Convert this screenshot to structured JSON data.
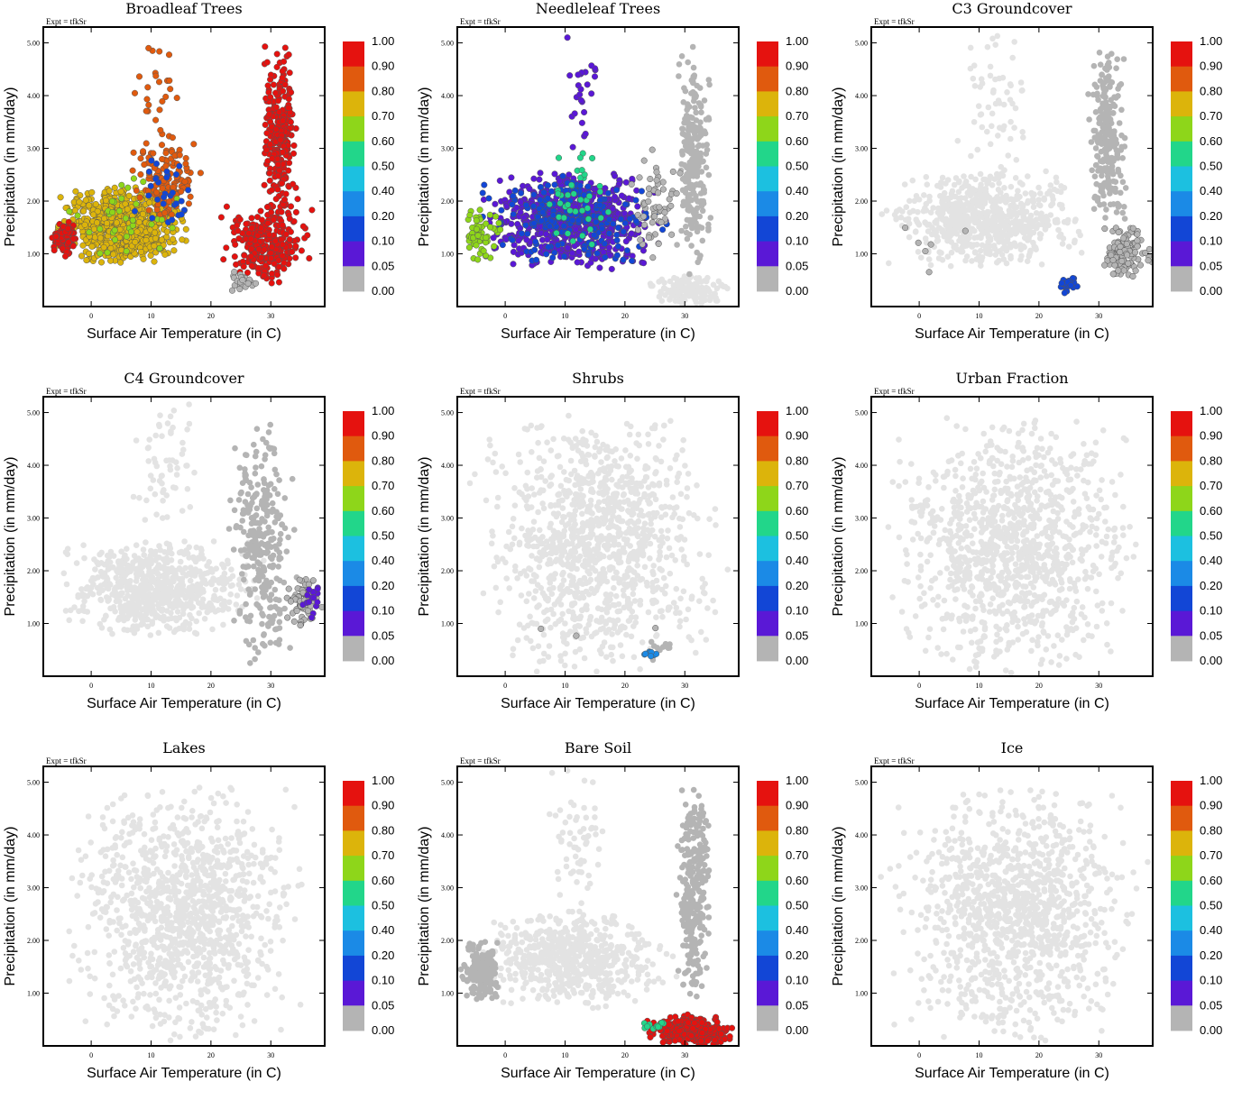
{
  "expt_label": "Expt = tfkSr",
  "colors": {
    "background_points": "#e3e3e3",
    "zero_points": "#b4b4b4",
    "frame": "#000000"
  },
  "colorbar": {
    "labels": [
      "1.00",
      "0.90",
      "0.80",
      "0.70",
      "0.60",
      "0.50",
      "0.40",
      "0.20",
      "0.10",
      "0.05",
      "0.00"
    ],
    "colors": [
      "#e5120f",
      "#e05a0e",
      "#dcb40b",
      "#8ed61a",
      "#22d68a",
      "#1cc0e0",
      "#1b8ae6",
      "#1246d6",
      "#5a18d6",
      "#b4b4b4"
    ]
  },
  "chart_data": [
    {
      "type": "scatter",
      "title": "Broadleaf Trees",
      "xlabel": "Surface Air Temperature (in C)",
      "ylabel": "Precipitation (in mm/day)",
      "xlim": [
        -8,
        39
      ],
      "ylim": [
        0,
        5.3
      ],
      "xticks": [
        "0",
        "10",
        "20",
        "30"
      ],
      "yticks": [
        "1.00",
        "2.00",
        "3.00",
        "4.00",
        "5.00"
      ],
      "clusters": [
        {
          "x": [
            -8,
            18
          ],
          "y": [
            0.8,
            2.3
          ],
          "n": 700,
          "level": 8
        },
        {
          "x": [
            -7,
            -2
          ],
          "y": [
            0.9,
            1.7
          ],
          "n": 100,
          "level": 10
        },
        {
          "x": [
            5,
            20
          ],
          "y": [
            1.6,
            3.3
          ],
          "n": 120,
          "level": 9
        },
        {
          "x": [
            20,
            39
          ],
          "y": [
            0.4,
            2.0
          ],
          "n": 250,
          "level": 10
        },
        {
          "x": [
            28,
            35
          ],
          "y": [
            1.5,
            5.0
          ],
          "n": 260,
          "level": 10
        },
        {
          "x": [
            -6,
            18
          ],
          "y": [
            0.8,
            2.5
          ],
          "n": 35,
          "level": 7
        },
        {
          "x": [
            6,
            20
          ],
          "y": [
            1.2,
            3.0
          ],
          "n": 30,
          "level": 3
        },
        {
          "x": [
            22,
            29
          ],
          "y": [
            0.2,
            0.7
          ],
          "n": 25,
          "level": 1
        },
        {
          "x": [
            6,
            16
          ],
          "y": [
            3.0,
            5.3
          ],
          "n": 25,
          "level": 9
        }
      ]
    },
    {
      "type": "scatter",
      "title": "Needleleaf Trees",
      "xlabel": "Surface Air Temperature (in C)",
      "ylabel": "Precipitation (in mm/day)",
      "xlim": [
        -8,
        39
      ],
      "ylim": [
        0,
        5.3
      ],
      "xticks": [
        "0",
        "10",
        "20",
        "30"
      ],
      "yticks": [
        "1.00",
        "2.00",
        "3.00",
        "4.00",
        "5.00"
      ],
      "clusters": [
        {
          "x": [
            -8,
            30
          ],
          "y": [
            0.7,
            2.6
          ],
          "n": 600,
          "level": 2
        },
        {
          "x": [
            -8,
            30
          ],
          "y": [
            0.7,
            2.6
          ],
          "n": 200,
          "level": 3
        },
        {
          "x": [
            -8,
            0
          ],
          "y": [
            0.8,
            2.0
          ],
          "n": 60,
          "level": 7
        },
        {
          "x": [
            5,
            20
          ],
          "y": [
            1.0,
            3.0
          ],
          "n": 40,
          "level": 6
        },
        {
          "x": [
            8,
            17
          ],
          "y": [
            2.8,
            5.3
          ],
          "n": 25,
          "level": 2
        },
        {
          "x": [
            20,
            30
          ],
          "y": [
            0.8,
            3.0
          ],
          "n": 60,
          "level": 1
        },
        {
          "x": [
            28,
            35
          ],
          "y": [
            0.5,
            5.0
          ],
          "n": 260,
          "level": 0
        },
        {
          "x": [
            22,
            39
          ],
          "y": [
            0.0,
            0.6
          ],
          "n": 150,
          "level": -1
        }
      ]
    },
    {
      "type": "scatter",
      "title": "C3 Groundcover",
      "xlabel": "Surface Air Temperature (in C)",
      "ylabel": "Precipitation (in mm/day)",
      "xlim": [
        -8,
        39
      ],
      "ylim": [
        0,
        5.3
      ],
      "xticks": [
        "0",
        "10",
        "20",
        "30"
      ],
      "yticks": [
        "1.00",
        "2.00",
        "3.00",
        "4.00",
        "5.00"
      ],
      "clusters": [
        {
          "x": [
            -8,
            30
          ],
          "y": [
            0.7,
            2.6
          ],
          "n": 700,
          "level": -1
        },
        {
          "x": [
            5,
            20
          ],
          "y": [
            2.5,
            5.3
          ],
          "n": 60,
          "level": -1
        },
        {
          "x": [
            28,
            35
          ],
          "y": [
            1.5,
            5.0
          ],
          "n": 260,
          "level": 0
        },
        {
          "x": [
            30,
            39
          ],
          "y": [
            0.5,
            1.6
          ],
          "n": 120,
          "level": 1
        },
        {
          "x": [
            22,
            28
          ],
          "y": [
            0.2,
            0.6
          ],
          "n": 30,
          "level": 3
        },
        {
          "x": [
            -7,
            10
          ],
          "y": [
            0.5,
            2.1
          ],
          "n": 6,
          "level": 1
        }
      ]
    },
    {
      "type": "scatter",
      "title": "C4 Groundcover",
      "xlabel": "Surface Air Temperature (in C)",
      "ylabel": "Precipitation (in mm/day)",
      "xlim": [
        -8,
        39
      ],
      "ylim": [
        0,
        5.3
      ],
      "xticks": [
        "0",
        "10",
        "20",
        "30"
      ],
      "yticks": [
        "1.00",
        "2.00",
        "3.00",
        "4.00",
        "5.00"
      ],
      "clusters": [
        {
          "x": [
            -8,
            30
          ],
          "y": [
            0.7,
            2.6
          ],
          "n": 700,
          "level": -1
        },
        {
          "x": [
            5,
            20
          ],
          "y": [
            2.5,
            5.3
          ],
          "n": 60,
          "level": -1
        },
        {
          "x": [
            22,
            35
          ],
          "y": [
            0.1,
            5.0
          ],
          "n": 300,
          "level": 0
        },
        {
          "x": [
            32,
            39
          ],
          "y": [
            0.8,
            2.0
          ],
          "n": 70,
          "level": 1
        },
        {
          "x": [
            33,
            39
          ],
          "y": [
            1.0,
            1.8
          ],
          "n": 15,
          "level": 2
        }
      ]
    },
    {
      "type": "scatter",
      "title": "Shrubs",
      "xlabel": "Surface Air Temperature (in C)",
      "ylabel": "Precipitation (in mm/day)",
      "xlim": [
        -8,
        39
      ],
      "ylim": [
        0,
        5.3
      ],
      "xticks": [
        "0",
        "10",
        "20",
        "30"
      ],
      "yticks": [
        "1.00",
        "2.00",
        "3.00",
        "4.00",
        "5.00"
      ],
      "clusters": [
        {
          "x": [
            -8,
            39
          ],
          "y": [
            0.0,
            5.0
          ],
          "n": 1100,
          "level": -1
        },
        {
          "x": [
            22,
            30
          ],
          "y": [
            0.3,
            0.8
          ],
          "n": 12,
          "level": 0
        },
        {
          "x": [
            22,
            26
          ],
          "y": [
            0.35,
            0.5
          ],
          "n": 8,
          "level": 4
        },
        {
          "x": [
            -5,
            35
          ],
          "y": [
            0.7,
            0.95
          ],
          "n": 3,
          "level": 1
        }
      ]
    },
    {
      "type": "scatter",
      "title": "Urban Fraction",
      "xlabel": "Surface Air Temperature (in C)",
      "ylabel": "Precipitation (in mm/day)",
      "xlim": [
        -8,
        39
      ],
      "ylim": [
        0,
        5.3
      ],
      "xticks": [
        "0",
        "10",
        "20",
        "30"
      ],
      "yticks": [
        "1.00",
        "2.00",
        "3.00",
        "4.00",
        "5.00"
      ],
      "clusters": [
        {
          "x": [
            -8,
            39
          ],
          "y": [
            0.0,
            5.0
          ],
          "n": 1100,
          "level": -1
        }
      ]
    },
    {
      "type": "scatter",
      "title": "Lakes",
      "xlabel": "Surface Air Temperature (in C)",
      "ylabel": "Precipitation (in mm/day)",
      "xlim": [
        -8,
        39
      ],
      "ylim": [
        0,
        5.3
      ],
      "xticks": [
        "0",
        "10",
        "20",
        "30"
      ],
      "yticks": [
        "1.00",
        "2.00",
        "3.00",
        "4.00",
        "5.00"
      ],
      "clusters": [
        {
          "x": [
            -8,
            39
          ],
          "y": [
            0.0,
            5.0
          ],
          "n": 1100,
          "level": -1
        }
      ]
    },
    {
      "type": "scatter",
      "title": "Bare Soil",
      "xlabel": "Surface Air Temperature (in C)",
      "ylabel": "Precipitation (in mm/day)",
      "xlim": [
        -8,
        39
      ],
      "ylim": [
        0,
        5.3
      ],
      "xticks": [
        "0",
        "10",
        "20",
        "30"
      ],
      "yticks": [
        "1.00",
        "2.00",
        "3.00",
        "4.00",
        "5.00"
      ],
      "clusters": [
        {
          "x": [
            -8,
            30
          ],
          "y": [
            0.7,
            2.6
          ],
          "n": 600,
          "level": -1
        },
        {
          "x": [
            5,
            20
          ],
          "y": [
            2.5,
            5.3
          ],
          "n": 60,
          "level": -1
        },
        {
          "x": [
            -8,
            0
          ],
          "y": [
            0.8,
            2.0
          ],
          "n": 200,
          "level": 0
        },
        {
          "x": [
            28,
            35
          ],
          "y": [
            0.8,
            5.0
          ],
          "n": 280,
          "level": 0
        },
        {
          "x": [
            22,
            39
          ],
          "y": [
            0.0,
            0.6
          ],
          "n": 320,
          "level": 10
        },
        {
          "x": [
            22,
            28
          ],
          "y": [
            0.3,
            0.5
          ],
          "n": 12,
          "level": 6
        }
      ]
    },
    {
      "type": "scatter",
      "title": "Ice",
      "xlabel": "Surface Air Temperature (in C)",
      "ylabel": "Precipitation (in mm/day)",
      "xlim": [
        -8,
        39
      ],
      "ylim": [
        0,
        5.3
      ],
      "xticks": [
        "0",
        "10",
        "20",
        "30"
      ],
      "yticks": [
        "1.00",
        "2.00",
        "3.00",
        "4.00",
        "5.00"
      ],
      "clusters": [
        {
          "x": [
            -8,
            39
          ],
          "y": [
            0.0,
            5.0
          ],
          "n": 1100,
          "level": -1
        }
      ]
    }
  ]
}
